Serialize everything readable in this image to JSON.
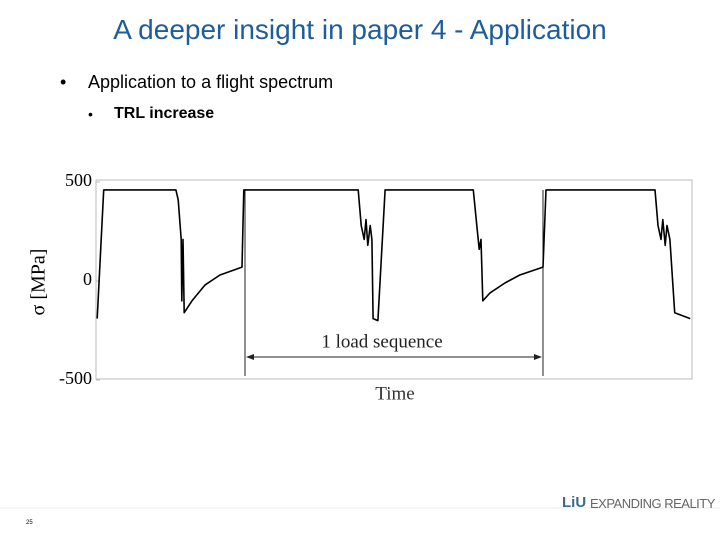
{
  "slide": {
    "title": "A deeper insight in paper 4 - Application",
    "bullet": "Application to a flight spectrum",
    "sub_bullet": "TRL increase",
    "page_number": "25",
    "logo": "LiU",
    "tagline": "EXPANDING REALITY"
  },
  "chart_data": {
    "type": "line",
    "y_label": "σ [MPa]",
    "x_label": "Time",
    "annotation": "1 load sequence",
    "xlim": [
      0,
      100
    ],
    "ylim": [
      -495,
      510
    ],
    "yticks": [
      500,
      0,
      -500
    ],
    "series": [
      {
        "color": "#000000",
        "x": [
          0.2,
          1.3,
          13.4,
          13.8,
          14.3,
          14.4,
          14.6,
          14.8,
          16.1,
          18.3,
          20.8,
          24.5,
          24.8,
          44.0,
          44.5,
          45.0,
          45.3,
          45.6,
          46.0,
          46.3,
          46.5,
          47.3,
          48.5,
          63.3,
          63.9,
          64.3,
          64.6,
          64.9,
          66.1,
          68.6,
          71.1,
          75.0,
          75.5,
          93.8,
          94.3,
          94.8,
          95.1,
          95.5,
          95.8,
          96.3,
          97.1,
          99.7
        ],
        "values": [
          -190,
          460,
          460,
          410,
          210,
          -100,
          210,
          -160,
          -100,
          -20,
          30,
          70,
          460,
          460,
          280,
          210,
          310,
          180,
          280,
          210,
          -190,
          -200,
          460,
          460,
          280,
          160,
          210,
          -100,
          -60,
          -10,
          30,
          70,
          460,
          460,
          280,
          210,
          310,
          180,
          280,
          210,
          -160,
          -190
        ]
      }
    ]
  }
}
